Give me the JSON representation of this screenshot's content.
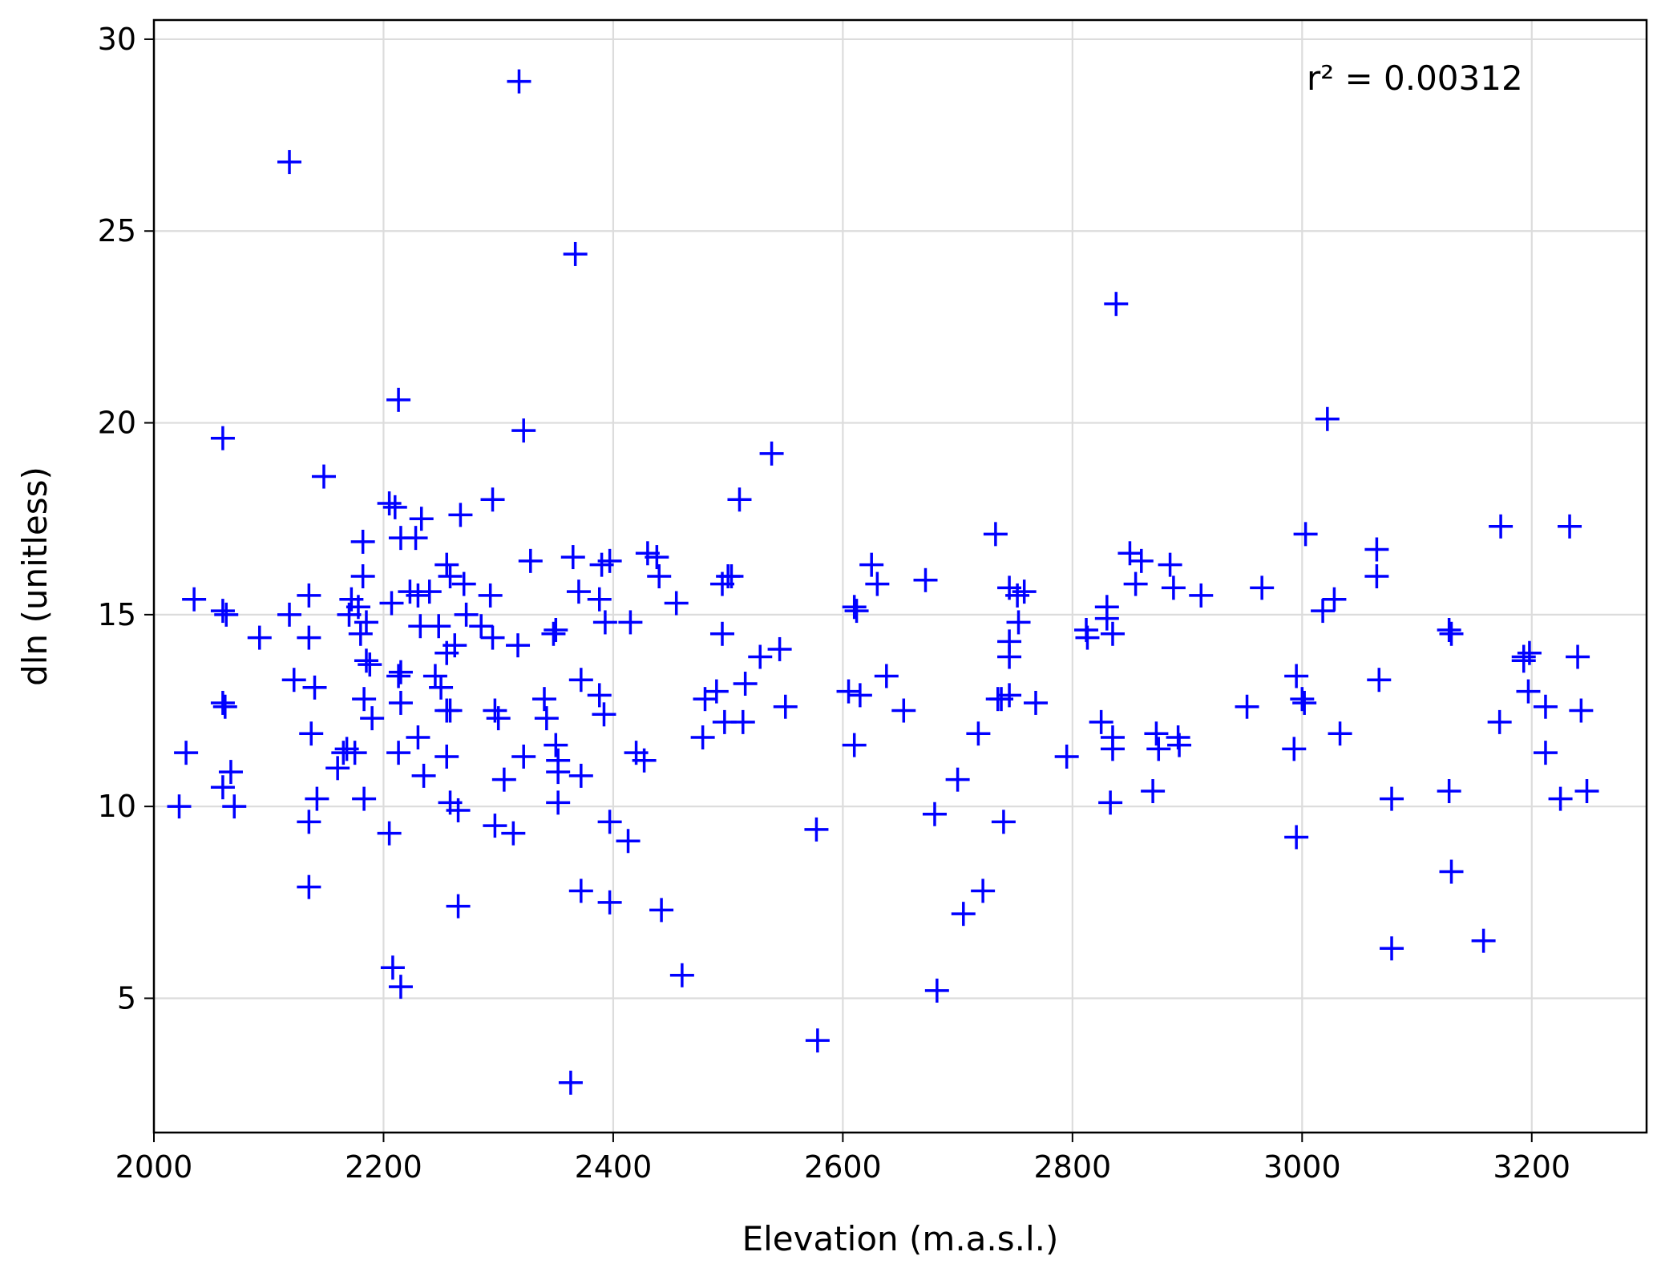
{
  "chart_data": {
    "type": "scatter",
    "title": "",
    "xlabel": "Elevation (m.a.s.l.)",
    "ylabel": "dln (unitless)",
    "xlim": [
      2000,
      3300
    ],
    "ylim": [
      1.5,
      30.5
    ],
    "xticks": [
      2000,
      2200,
      2400,
      2600,
      2800,
      3000,
      3200
    ],
    "yticks": [
      5,
      10,
      15,
      20,
      25,
      30
    ],
    "grid": true,
    "marker": "plus",
    "color": "#0000ff",
    "annotation": "r² = 0.00312",
    "series": [
      {
        "points": [
          [
            2022,
            10.0
          ],
          [
            2028,
            11.4
          ],
          [
            2035,
            15.4
          ],
          [
            2060,
            19.6
          ],
          [
            2060,
            15.1
          ],
          [
            2063,
            15.0
          ],
          [
            2060,
            12.7
          ],
          [
            2062,
            12.6
          ],
          [
            2060,
            10.5
          ],
          [
            2067,
            10.9
          ],
          [
            2070,
            10.0
          ],
          [
            2092,
            14.4
          ],
          [
            2118,
            26.8
          ],
          [
            2118,
            15.0
          ],
          [
            2122,
            13.3
          ],
          [
            2135,
            15.5
          ],
          [
            2135,
            14.4
          ],
          [
            2137,
            11.9
          ],
          [
            2140,
            13.1
          ],
          [
            2135,
            9.6
          ],
          [
            2135,
            7.9
          ],
          [
            2142,
            10.2
          ],
          [
            2148,
            18.6
          ],
          [
            2160,
            11.0
          ],
          [
            2165,
            11.4
          ],
          [
            2168,
            11.5
          ],
          [
            2170,
            15.0
          ],
          [
            2172,
            15.4
          ],
          [
            2175,
            11.4
          ],
          [
            2178,
            15.2
          ],
          [
            2180,
            14.5
          ],
          [
            2182,
            16.9
          ],
          [
            2182,
            16.0
          ],
          [
            2183,
            12.8
          ],
          [
            2185,
            14.8
          ],
          [
            2185,
            13.8
          ],
          [
            2188,
            13.7
          ],
          [
            2190,
            12.3
          ],
          [
            2183,
            10.2
          ],
          [
            2205,
            9.3
          ],
          [
            2205,
            17.9
          ],
          [
            2210,
            17.8
          ],
          [
            2207,
            15.3
          ],
          [
            2213,
            20.6
          ],
          [
            2215,
            17.0
          ],
          [
            2213,
            13.4
          ],
          [
            2215,
            13.5
          ],
          [
            2215,
            12.7
          ],
          [
            2213,
            11.4
          ],
          [
            2208,
            5.8
          ],
          [
            2215,
            5.3
          ],
          [
            2223,
            15.6
          ],
          [
            2228,
            17.0
          ],
          [
            2230,
            15.5
          ],
          [
            2233,
            17.5
          ],
          [
            2232,
            14.7
          ],
          [
            2230,
            11.8
          ],
          [
            2235,
            10.8
          ],
          [
            2240,
            15.6
          ],
          [
            2245,
            13.4
          ],
          [
            2248,
            14.7
          ],
          [
            2250,
            13.1
          ],
          [
            2255,
            16.3
          ],
          [
            2258,
            16.0
          ],
          [
            2255,
            14.0
          ],
          [
            2255,
            12.5
          ],
          [
            2258,
            12.5
          ],
          [
            2255,
            11.3
          ],
          [
            2258,
            10.1
          ],
          [
            2262,
            14.2
          ],
          [
            2265,
            9.9
          ],
          [
            2267,
            17.6
          ],
          [
            2265,
            7.4
          ],
          [
            2270,
            15.8
          ],
          [
            2272,
            15.0
          ],
          [
            2285,
            14.7
          ],
          [
            2293,
            15.5
          ],
          [
            2295,
            18.0
          ],
          [
            2295,
            14.4
          ],
          [
            2297,
            12.5
          ],
          [
            2300,
            12.3
          ],
          [
            2297,
            9.5
          ],
          [
            2305,
            10.7
          ],
          [
            2313,
            9.3
          ],
          [
            2317,
            14.2
          ],
          [
            2318,
            28.9
          ],
          [
            2322,
            19.8
          ],
          [
            2322,
            11.3
          ],
          [
            2328,
            16.4
          ],
          [
            2340,
            12.8
          ],
          [
            2342,
            12.3
          ],
          [
            2348,
            14.5
          ],
          [
            2350,
            14.6
          ],
          [
            2350,
            11.6
          ],
          [
            2352,
            11.2
          ],
          [
            2352,
            10.9
          ],
          [
            2352,
            10.1
          ],
          [
            2363,
            2.8
          ],
          [
            2365,
            16.5
          ],
          [
            2367,
            24.4
          ],
          [
            2370,
            15.6
          ],
          [
            2372,
            13.3
          ],
          [
            2372,
            10.8
          ],
          [
            2372,
            7.8
          ],
          [
            2388,
            15.4
          ],
          [
            2388,
            12.9
          ],
          [
            2390,
            16.3
          ],
          [
            2392,
            12.4
          ],
          [
            2393,
            14.8
          ],
          [
            2397,
            16.4
          ],
          [
            2397,
            9.6
          ],
          [
            2397,
            7.5
          ],
          [
            2413,
            9.1
          ],
          [
            2415,
            14.8
          ],
          [
            2420,
            11.4
          ],
          [
            2427,
            11.2
          ],
          [
            2430,
            16.6
          ],
          [
            2438,
            16.5
          ],
          [
            2440,
            16.0
          ],
          [
            2442,
            7.3
          ],
          [
            2455,
            15.3
          ],
          [
            2460,
            5.6
          ],
          [
            2478,
            11.8
          ],
          [
            2480,
            12.8
          ],
          [
            2490,
            13.0
          ],
          [
            2495,
            15.8
          ],
          [
            2495,
            14.5
          ],
          [
            2497,
            12.2
          ],
          [
            2500,
            16.0
          ],
          [
            2503,
            16.0
          ],
          [
            2510,
            18.0
          ],
          [
            2513,
            12.2
          ],
          [
            2515,
            13.2
          ],
          [
            2528,
            13.9
          ],
          [
            2538,
            19.2
          ],
          [
            2545,
            14.1
          ],
          [
            2550,
            12.6
          ],
          [
            2577,
            9.4
          ],
          [
            2578,
            3.9
          ],
          [
            2605,
            13.0
          ],
          [
            2610,
            15.2
          ],
          [
            2612,
            15.1
          ],
          [
            2610,
            11.6
          ],
          [
            2615,
            12.9
          ],
          [
            2625,
            16.3
          ],
          [
            2630,
            15.8
          ],
          [
            2638,
            13.4
          ],
          [
            2653,
            12.5
          ],
          [
            2672,
            15.9
          ],
          [
            2680,
            9.8
          ],
          [
            2682,
            5.2
          ],
          [
            2700,
            10.7
          ],
          [
            2705,
            7.2
          ],
          [
            2718,
            11.9
          ],
          [
            2722,
            7.8
          ],
          [
            2733,
            17.1
          ],
          [
            2735,
            12.8
          ],
          [
            2738,
            12.8
          ],
          [
            2740,
            9.6
          ],
          [
            2745,
            12.9
          ],
          [
            2745,
            14.3
          ],
          [
            2745,
            13.9
          ],
          [
            2745,
            15.7
          ],
          [
            2752,
            15.5
          ],
          [
            2753,
            14.8
          ],
          [
            2758,
            15.6
          ],
          [
            2768,
            12.7
          ],
          [
            2795,
            11.3
          ],
          [
            2812,
            14.6
          ],
          [
            2813,
            14.4
          ],
          [
            2825,
            12.2
          ],
          [
            2830,
            15.2
          ],
          [
            2830,
            14.9
          ],
          [
            2835,
            14.5
          ],
          [
            2835,
            11.8
          ],
          [
            2835,
            11.5
          ],
          [
            2833,
            10.1
          ],
          [
            2838,
            23.1
          ],
          [
            2850,
            16.6
          ],
          [
            2855,
            15.8
          ],
          [
            2860,
            16.4
          ],
          [
            2870,
            10.4
          ],
          [
            2873,
            11.9
          ],
          [
            2875,
            11.5
          ],
          [
            2885,
            16.3
          ],
          [
            2888,
            15.7
          ],
          [
            2892,
            11.8
          ],
          [
            2893,
            11.6
          ],
          [
            2912,
            15.5
          ],
          [
            2952,
            12.6
          ],
          [
            2965,
            15.7
          ],
          [
            2993,
            11.5
          ],
          [
            2995,
            13.4
          ],
          [
            2995,
            9.2
          ],
          [
            3000,
            12.8
          ],
          [
            3002,
            12.7
          ],
          [
            3003,
            17.1
          ],
          [
            3018,
            15.1
          ],
          [
            3022,
            20.1
          ],
          [
            3028,
            15.4
          ],
          [
            3033,
            11.9
          ],
          [
            3065,
            16.7
          ],
          [
            3065,
            16.0
          ],
          [
            3067,
            13.3
          ],
          [
            3078,
            10.2
          ],
          [
            3078,
            6.3
          ],
          [
            3128,
            14.6
          ],
          [
            3130,
            14.5
          ],
          [
            3128,
            10.4
          ],
          [
            3130,
            8.3
          ],
          [
            3158,
            6.5
          ],
          [
            3173,
            17.3
          ],
          [
            3172,
            12.2
          ],
          [
            3193,
            13.9
          ],
          [
            3193,
            13.8
          ],
          [
            3197,
            13.0
          ],
          [
            3198,
            14.0
          ],
          [
            3212,
            12.6
          ],
          [
            3212,
            11.4
          ],
          [
            3225,
            10.2
          ],
          [
            3233,
            17.3
          ],
          [
            3240,
            13.9
          ],
          [
            3243,
            12.5
          ],
          [
            3248,
            10.4
          ]
        ]
      }
    ]
  }
}
